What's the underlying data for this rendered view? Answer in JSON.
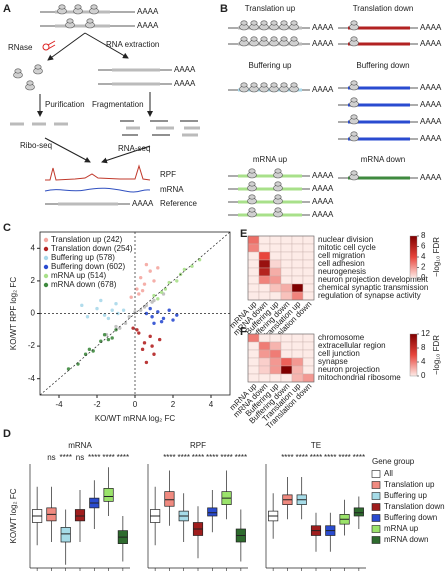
{
  "panel_a": {
    "label": "A",
    "poly_a": "AAAA",
    "rnase": "RNase",
    "rna_extraction": "RNA extraction",
    "purification": "Purification",
    "fragmentation": "Fragmentation",
    "ribo_seq": "Ribo-seq",
    "rna_seq": "RNA-seq",
    "tracks": [
      "RPF",
      "mRNA",
      "Reference"
    ]
  },
  "panel_b": {
    "label": "B",
    "poly_a": "AAAA",
    "groups": [
      "Translation up",
      "Translation down",
      "Buffering up",
      "Buffering down",
      "mRNA up",
      "mRNA down"
    ]
  },
  "gene_group": {
    "title": "Gene group",
    "names": [
      "All",
      "Translation up",
      "Buffering up",
      "Translation down",
      "Buffering down",
      "mRNA up",
      "mRNA down"
    ],
    "colors": [
      "#ffffff",
      "#f08a80",
      "#a6dce8",
      "#a01d1d",
      "#2a4bd0",
      "#9be36b",
      "#2e6b2e"
    ]
  },
  "chart_data": [
    {
      "type": "scatter",
      "panel": "C",
      "xlabel": "KO/WT mRNA log₂ FC",
      "ylabel": "KO/WT RPF log₂ FC",
      "xlim": [
        -5,
        5
      ],
      "ylim": [
        -5,
        5
      ],
      "xticks": [
        -4,
        -2,
        0,
        2,
        4
      ],
      "yticks": [
        -4,
        -2,
        0,
        2,
        4
      ],
      "legend": "upper left",
      "series": [
        {
          "color": "#bbbbbb",
          "x": [
            -1.5,
            -1,
            -0.5,
            0,
            0.5,
            1,
            1.5,
            -0.8,
            0.3,
            0.9,
            -0.3,
            0.6
          ],
          "y": [
            -1.3,
            -0.8,
            -0.6,
            0.1,
            0.4,
            0.8,
            1.2,
            -0.9,
            0.2,
            0.7,
            -0.2,
            0.5
          ]
        },
        {
          "name": "Translation up (242)",
          "color": "#f4a6a0",
          "x": [
            0.1,
            0.3,
            0.5,
            0.8,
            1.0,
            0.2,
            0.6,
            -0.2,
            0.4,
            1.2
          ],
          "y": [
            1.5,
            2.2,
            1.8,
            2.6,
            2.0,
            1.2,
            3.0,
            1.0,
            1.4,
            2.8
          ]
        },
        {
          "name": "Translation down (254)",
          "color": "#b22222",
          "x": [
            0.2,
            0.5,
            0.8,
            1.0,
            0.1,
            0.6,
            1.3,
            -0.1,
            0.4,
            0.9
          ],
          "y": [
            -1.2,
            -1.8,
            -1.4,
            -2.5,
            -1.0,
            -3.0,
            -1.6,
            -0.9,
            -2.2,
            -2.0
          ]
        },
        {
          "name": "Buffering up (578)",
          "color": "#a8d8ea",
          "x": [
            -2.5,
            -2.0,
            -1.6,
            -1.2,
            -0.9,
            -0.6,
            -1.8,
            -2.8,
            -1.4,
            -1.0
          ],
          "y": [
            -0.2,
            0.3,
            -0.1,
            0.2,
            0.0,
            0.2,
            0.8,
            0.5,
            -0.3,
            0.6
          ]
        },
        {
          "name": "Buffering down (602)",
          "color": "#2a4bd0",
          "x": [
            0.6,
            0.9,
            1.2,
            1.5,
            1.8,
            2.2,
            1.0,
            1.4,
            0.8,
            2.0
          ],
          "y": [
            0.0,
            -0.2,
            0.1,
            -0.3,
            0.2,
            -0.1,
            -0.6,
            -0.5,
            0.3,
            -0.4
          ]
        },
        {
          "name": "mRNA up (514)",
          "color": "#a8e08a",
          "x": [
            1.0,
            1.4,
            1.8,
            2.2,
            2.6,
            3.0,
            1.6,
            2.4,
            3.4,
            1.2
          ],
          "y": [
            1.1,
            1.3,
            1.9,
            2.0,
            2.7,
            2.9,
            1.5,
            2.4,
            3.3,
            0.9
          ]
        },
        {
          "name": "mRNA down (678)",
          "color": "#3f8a3f",
          "x": [
            -1.0,
            -1.4,
            -1.8,
            -2.2,
            -2.6,
            -3.0,
            -1.6,
            -2.4,
            -3.5,
            -1.2
          ],
          "y": [
            -1.0,
            -1.6,
            -1.7,
            -2.3,
            -2.5,
            -3.1,
            -1.3,
            -2.2,
            -3.4,
            -1.5
          ]
        }
      ]
    },
    {
      "type": "heatmap",
      "panel": "E",
      "colorbar_label": "−log₁₀ FDR",
      "zlim": [
        0,
        8
      ],
      "zticks": [
        0,
        2,
        4,
        6,
        8
      ],
      "colors": [
        "#fdebe7",
        "#e8453c",
        "#7f0000"
      ],
      "columns": [
        "mRNA up",
        "mRNA down",
        "Buffering up",
        "Buffering down",
        "Translation up",
        "Translation down"
      ],
      "rows": [
        "nuclear division",
        "mitotic cell cycle",
        "cell migration",
        "cell adhesion",
        "neurogenesis",
        "neuron projection development",
        "chemical synaptic transmission",
        "regulation of synapse activity"
      ],
      "values": [
        [
          3,
          0,
          0,
          0,
          0,
          0
        ],
        [
          2.5,
          0,
          0,
          0,
          0,
          0
        ],
        [
          0,
          4,
          0,
          0,
          0,
          0
        ],
        [
          0,
          7,
          0.5,
          0,
          0,
          0
        ],
        [
          0,
          6,
          1.5,
          0,
          0,
          0
        ],
        [
          0,
          2.5,
          2,
          0,
          0,
          0
        ],
        [
          0,
          0,
          1,
          1.5,
          8,
          0
        ],
        [
          0,
          0,
          0,
          1,
          2.5,
          0
        ]
      ]
    },
    {
      "type": "heatmap",
      "panel": "F",
      "colorbar_label": "−log₁₀ FDR",
      "zlim": [
        0,
        12
      ],
      "zticks": [
        0,
        4,
        8,
        12
      ],
      "colors": [
        "#fdebe7",
        "#e8453c",
        "#7f0000"
      ],
      "columns": [
        "mRNA up",
        "mRNA down",
        "Buffering up",
        "Buffering down",
        "Translation up",
        "Translation down"
      ],
      "rows": [
        "chromosome",
        "extracellular region",
        "cell junction",
        "synapse",
        "neuron projection",
        "mitochondrial ribosome"
      ],
      "values": [
        [
          4,
          0,
          0,
          0,
          0,
          0
        ],
        [
          0,
          4,
          2,
          0,
          0,
          0
        ],
        [
          0,
          3,
          4,
          0,
          0,
          0
        ],
        [
          0,
          1,
          3,
          5,
          3,
          0
        ],
        [
          0,
          1,
          3,
          12,
          2,
          0
        ],
        [
          0,
          0,
          0,
          0,
          2,
          3
        ]
      ]
    },
    {
      "type": "box",
      "panel": "D",
      "title": "mRNA",
      "ylabel": "KO/WT log₂ FC",
      "ylim": [
        -1.6,
        1.6
      ],
      "significance": [
        null,
        "ns",
        "****",
        "ns",
        "****",
        "****",
        "****"
      ],
      "boxes": [
        {
          "low": -0.9,
          "q1": -0.2,
          "median": 0,
          "q3": 0.2,
          "high": 0.9
        },
        {
          "low": -0.8,
          "q1": -0.15,
          "median": 0.05,
          "q3": 0.25,
          "high": 0.9
        },
        {
          "low": -1.5,
          "q1": -0.8,
          "median": -0.55,
          "q3": -0.35,
          "high": 0.2
        },
        {
          "low": -0.8,
          "q1": -0.15,
          "median": 0,
          "q3": 0.2,
          "high": 0.8
        },
        {
          "low": -0.4,
          "q1": 0.25,
          "median": 0.4,
          "q3": 0.55,
          "high": 1.1
        },
        {
          "low": 0,
          "q1": 0.45,
          "median": 0.6,
          "q3": 0.85,
          "high": 1.5
        },
        {
          "low": -1.4,
          "q1": -0.85,
          "median": -0.65,
          "q3": -0.45,
          "high": 0
        }
      ]
    },
    {
      "type": "box",
      "title": "RPF",
      "ylim": [
        -1.6,
        1.6
      ],
      "significance": [
        null,
        "****",
        "****",
        "****",
        "****",
        "****",
        "****"
      ],
      "boxes": [
        {
          "low": -0.9,
          "q1": -0.2,
          "median": 0,
          "q3": 0.2,
          "high": 0.9
        },
        {
          "low": -0.3,
          "q1": 0.3,
          "median": 0.5,
          "q3": 0.75,
          "high": 1.4
        },
        {
          "low": -0.8,
          "q1": -0.15,
          "median": 0,
          "q3": 0.15,
          "high": 0.7
        },
        {
          "low": -1.3,
          "q1": -0.6,
          "median": -0.4,
          "q3": -0.2,
          "high": 0.3
        },
        {
          "low": -0.5,
          "q1": 0,
          "median": 0.1,
          "q3": 0.25,
          "high": 0.8
        },
        {
          "low": -0.1,
          "q1": 0.35,
          "median": 0.55,
          "q3": 0.75,
          "high": 1.4
        },
        {
          "low": -1.4,
          "q1": -0.8,
          "median": -0.6,
          "q3": -0.4,
          "high": 0.2
        }
      ]
    },
    {
      "type": "box",
      "title": "TE",
      "ylim": [
        -1.6,
        1.6
      ],
      "significance": [
        null,
        "****",
        "****",
        "****",
        "****",
        "****",
        "****"
      ],
      "boxes": [
        {
          "low": -0.7,
          "q1": -0.15,
          "median": 0,
          "q3": 0.15,
          "high": 0.7
        },
        {
          "low": -0.1,
          "q1": 0.35,
          "median": 0.5,
          "q3": 0.65,
          "high": 1.2
        },
        {
          "low": -0.1,
          "q1": 0.35,
          "median": 0.5,
          "q3": 0.65,
          "high": 1.2
        },
        {
          "low": -1.1,
          "q1": -0.6,
          "median": -0.45,
          "q3": -0.3,
          "high": 0.1
        },
        {
          "low": -1.1,
          "q1": -0.6,
          "median": -0.45,
          "q3": -0.3,
          "high": 0.1
        },
        {
          "low": -0.6,
          "q1": -0.25,
          "median": -0.1,
          "q3": 0.05,
          "high": 0.5
        },
        {
          "low": -0.4,
          "q1": 0,
          "median": 0.1,
          "q3": 0.25,
          "high": 0.6
        }
      ]
    }
  ]
}
